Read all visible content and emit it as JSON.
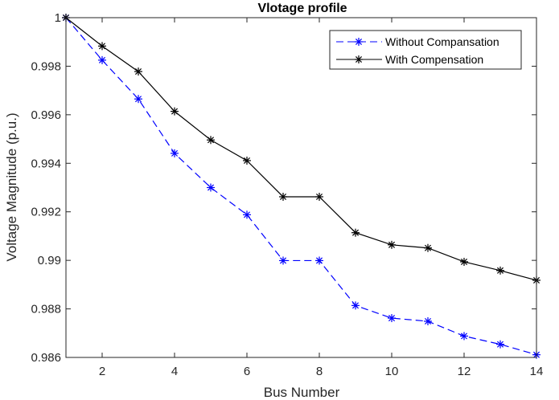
{
  "chart_data": {
    "type": "line",
    "title": "Vlotage profile",
    "xlabel": "Bus Number",
    "ylabel": "Voltage Magnitude (p.u.)",
    "xlim": [
      1,
      14
    ],
    "ylim": [
      0.986,
      1
    ],
    "xticks": [
      2,
      4,
      6,
      8,
      10,
      12,
      14
    ],
    "xtick_labels": [
      "2",
      "4",
      "6",
      "8",
      "10",
      "12",
      "14"
    ],
    "yticks": [
      0.986,
      0.988,
      0.99,
      0.992,
      0.994,
      0.996,
      0.998,
      1
    ],
    "ytick_labels": [
      "0.986",
      "0.988",
      "0.99",
      "0.992",
      "0.994",
      "0.996",
      "0.998",
      "1"
    ],
    "x": [
      1,
      2,
      3,
      4,
      5,
      6,
      7,
      8,
      9,
      10,
      11,
      12,
      13,
      14
    ],
    "grid": false,
    "legend_position": "top-right",
    "series": [
      {
        "name": "Without Compansation",
        "color": "#0000ff",
        "line_style": "dashed",
        "marker": "asterisk",
        "values": [
          1.0,
          0.99825,
          0.99665,
          0.99441,
          0.993,
          0.99188,
          0.98999,
          0.98999,
          0.98814,
          0.98762,
          0.98749,
          0.98688,
          0.98654,
          0.98611
        ]
      },
      {
        "name": "With Compensation",
        "color": "#000000",
        "line_style": "solid",
        "marker": "asterisk",
        "values": [
          1.0,
          0.99883,
          0.99778,
          0.99614,
          0.99496,
          0.99411,
          0.99262,
          0.99262,
          0.99114,
          0.99064,
          0.99051,
          0.98994,
          0.98958,
          0.98918
        ]
      }
    ]
  }
}
